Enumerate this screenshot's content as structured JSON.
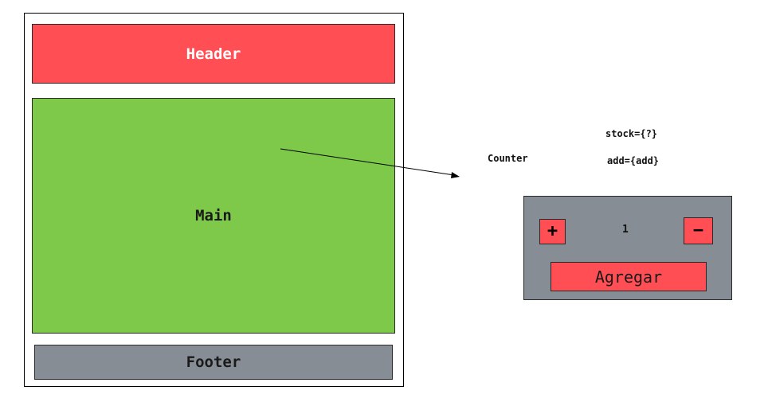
{
  "layout_sketch": {
    "header_label": "Header",
    "main_label": "Main",
    "footer_label": "Footer"
  },
  "component": {
    "name": "Counter",
    "props": {
      "stock": "stock={?}",
      "add": "add={add}"
    },
    "widget": {
      "plus_symbol": "+",
      "minus_symbol": "−",
      "count_value": "1",
      "add_button_label": "Agregar"
    }
  },
  "colors": {
    "header": "#ff4f55",
    "main": "#7ec84a",
    "footer": "#878d94",
    "widget_bg": "#878d94",
    "button": "#ff4f55"
  }
}
